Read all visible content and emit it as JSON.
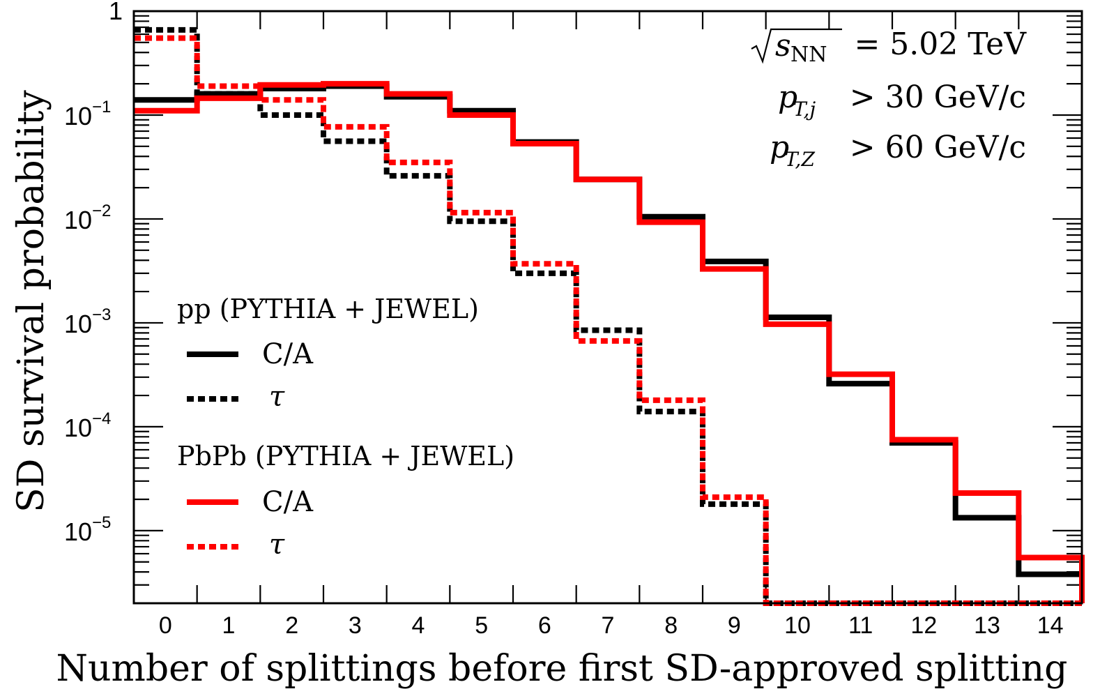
{
  "chart_data": {
    "type": "step",
    "scale_y": "log",
    "ylim": [
      2e-06,
      1
    ],
    "xlim": [
      -0.5,
      14.5
    ],
    "xlabel": "Number of splittings before first SD-approved splitting",
    "ylabel": "SD survival probability",
    "x_ticks": [
      "0",
      "1",
      "2",
      "3",
      "4",
      "5",
      "6",
      "7",
      "8",
      "9",
      "10",
      "11",
      "12",
      "13",
      "14"
    ],
    "y_tick_labels": [
      {
        "value": 1,
        "mantissa": "1",
        "exponent": ""
      },
      {
        "value": 0.1,
        "mantissa": "10",
        "exponent": "−1"
      },
      {
        "value": 0.01,
        "mantissa": "10",
        "exponent": "−2"
      },
      {
        "value": 0.001,
        "mantissa": "10",
        "exponent": "−3"
      },
      {
        "value": 0.0001,
        "mantissa": "10",
        "exponent": "−4"
      },
      {
        "value": 1e-05,
        "mantissa": "10",
        "exponent": "−5"
      }
    ],
    "annotations": {
      "sqrt_s": {
        "symbol": "s",
        "subscript": "NN",
        "rest": "= 5.02 TeV"
      },
      "pt_jet": {
        "symbol": "p",
        "subscript": "T,j",
        "rest": "> 30 GeV/c"
      },
      "pt_z": {
        "symbol": "p",
        "subscript": "T,Z",
        "rest": "> 60 GeV/c"
      }
    },
    "legend": {
      "position": "center-left",
      "groups": [
        {
          "title": "pp (PYTHIA + JEWEL)",
          "entries": [
            {
              "label": "C/A",
              "series": 0
            },
            {
              "label": "τ",
              "series": 1
            }
          ]
        },
        {
          "title": "PbPb (PYTHIA + JEWEL)",
          "entries": [
            {
              "label": "C/A",
              "series": 2
            },
            {
              "label": "τ",
              "series": 3
            }
          ]
        }
      ]
    },
    "series": [
      {
        "name": "pp C/A",
        "color": "#000000",
        "style": "solid",
        "values": [
          0.14,
          0.16,
          0.18,
          0.19,
          0.15,
          0.11,
          0.055,
          0.024,
          0.0105,
          0.0039,
          0.00113,
          0.00026,
          7e-05,
          1.33e-05,
          3.8e-06
        ]
      },
      {
        "name": "pp τ",
        "color": "#000000",
        "style": "dashed",
        "values": [
          0.66,
          0.16,
          0.1,
          0.056,
          0.026,
          0.0095,
          0.003,
          0.00085,
          0.00014,
          1.8e-05,
          2e-06,
          2e-06,
          2e-06,
          2e-06,
          2e-06
        ]
      },
      {
        "name": "PbPb C/A",
        "color": "#ff0000",
        "style": "solid",
        "values": [
          0.11,
          0.145,
          0.195,
          0.2,
          0.16,
          0.1,
          0.053,
          0.024,
          0.0093,
          0.0033,
          0.00097,
          0.00032,
          7.5e-05,
          2.3e-05,
          5.5e-06
        ]
      },
      {
        "name": "PbPb τ",
        "color": "#ff0000",
        "style": "dashed",
        "values": [
          0.55,
          0.19,
          0.14,
          0.077,
          0.035,
          0.0115,
          0.0037,
          0.00067,
          0.00018,
          2.1e-05,
          2e-06,
          2e-06,
          2e-06,
          2e-06,
          2e-06
        ]
      }
    ]
  }
}
